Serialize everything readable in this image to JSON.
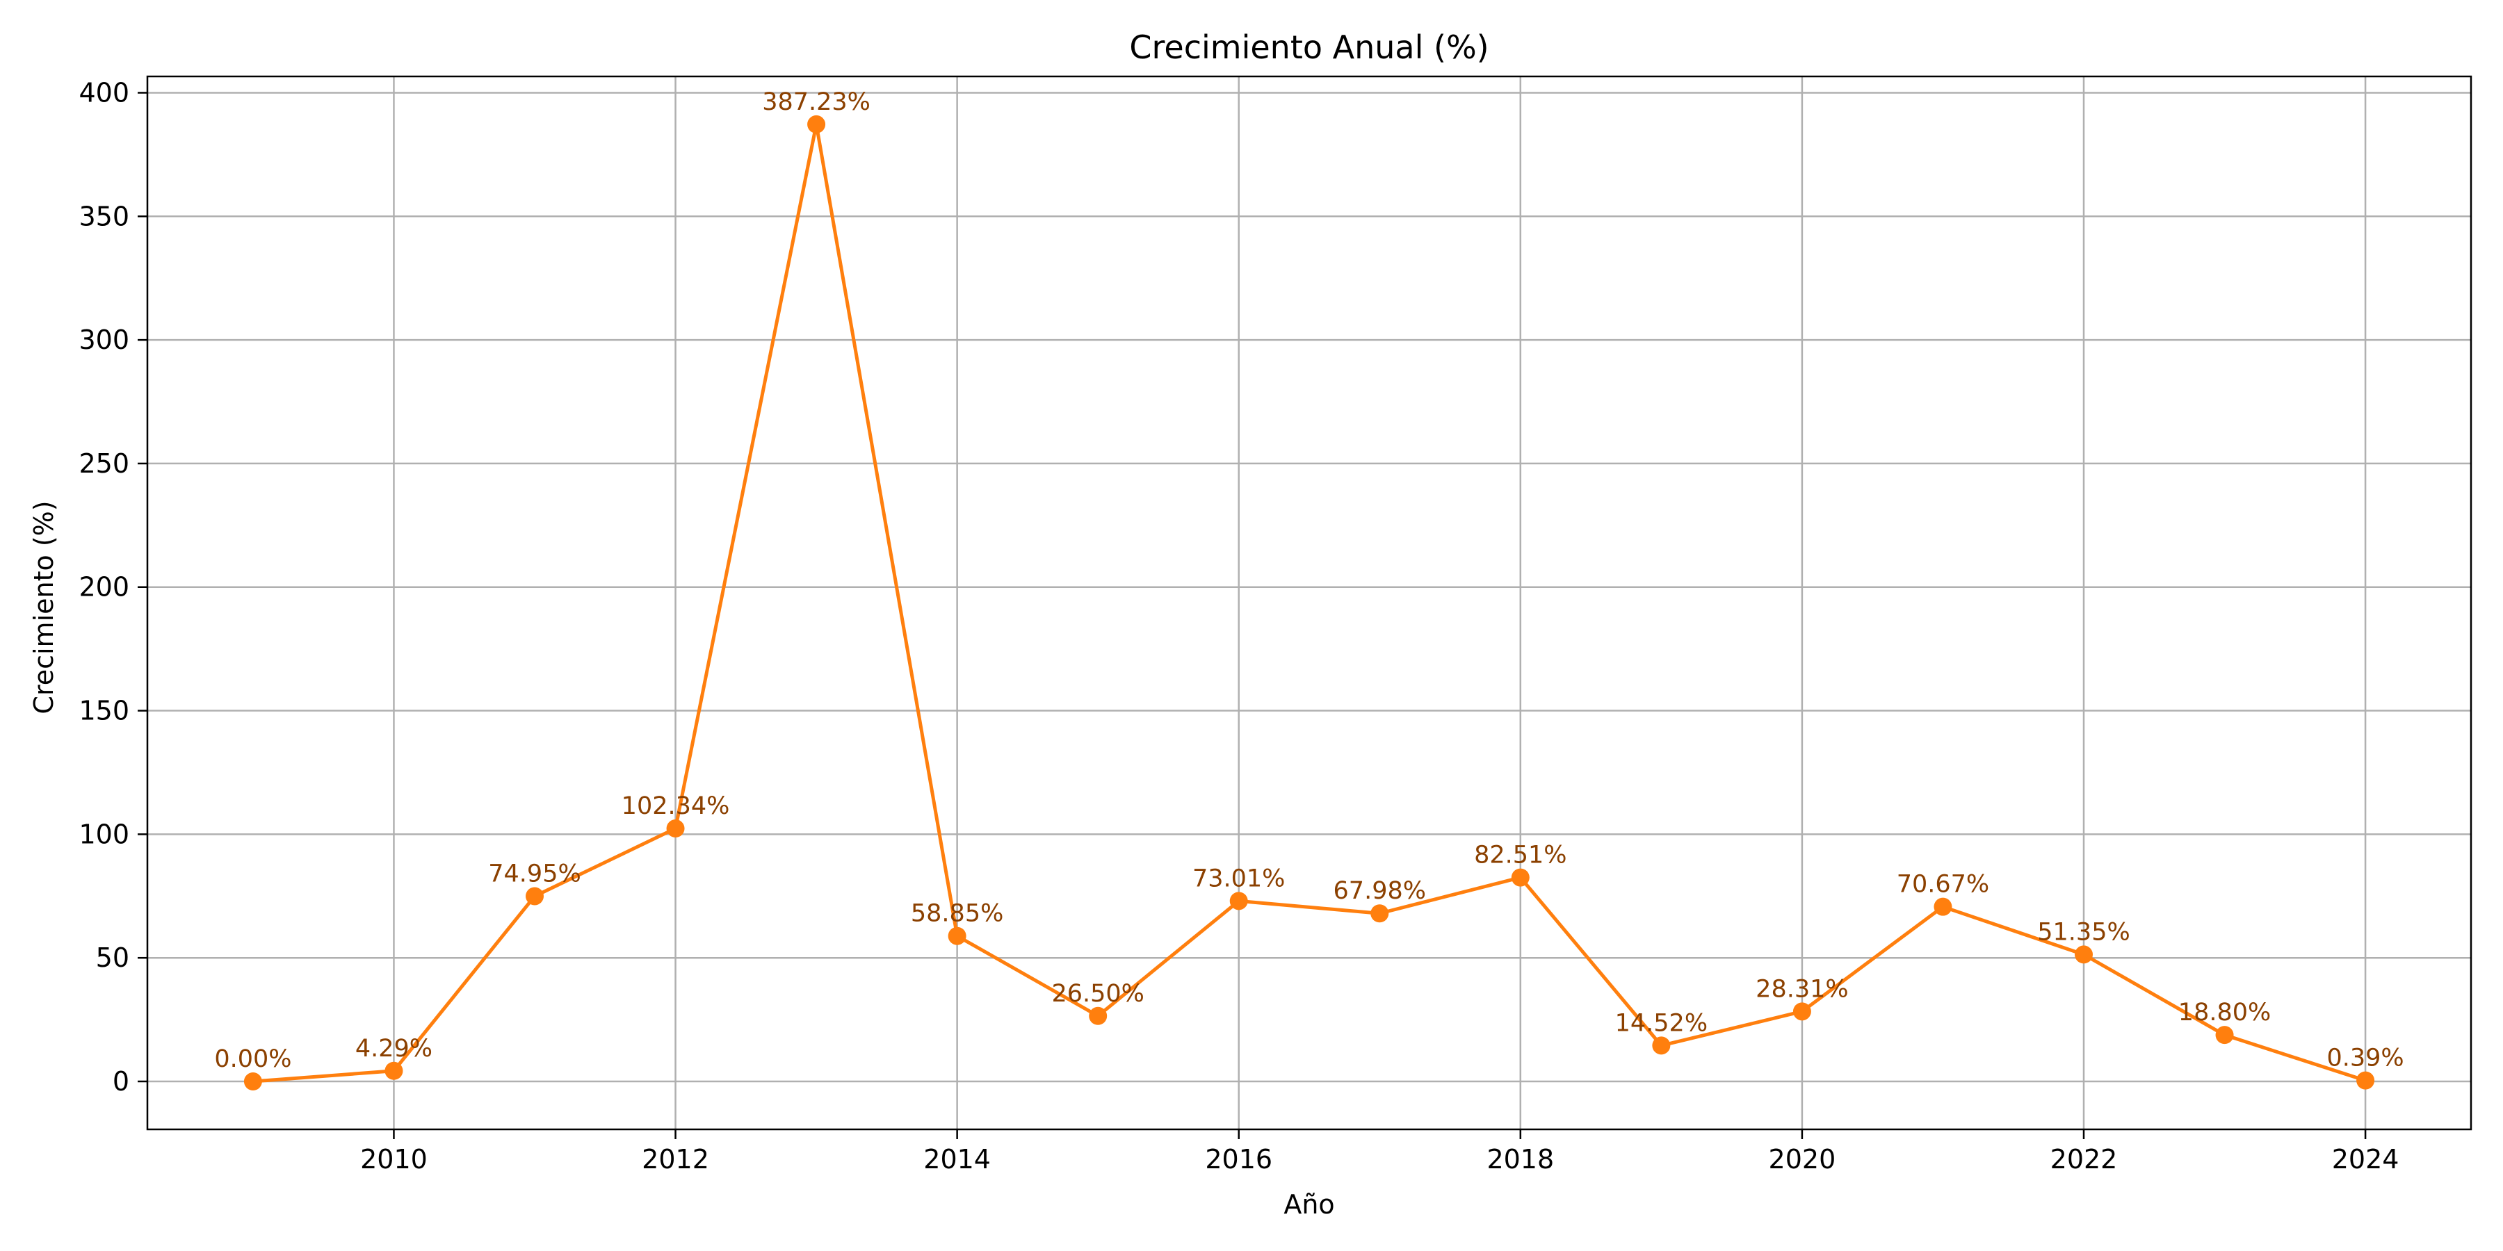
{
  "chart_data": {
    "type": "line",
    "title": "Crecimiento Anual (%)",
    "xlabel": "Año",
    "ylabel": "Crecimiento (%)",
    "x": [
      2009,
      2010,
      2011,
      2012,
      2013,
      2014,
      2015,
      2016,
      2017,
      2018,
      2019,
      2020,
      2021,
      2022,
      2023,
      2024
    ],
    "series": [
      {
        "values": [
          0.0,
          4.29,
          74.95,
          102.34,
          387.23,
          58.85,
          26.5,
          73.01,
          67.98,
          82.51,
          14.52,
          28.31,
          70.67,
          51.35,
          18.8,
          0.39
        ],
        "color": "#ff7f0e",
        "marker": "circle"
      }
    ],
    "data_labels": [
      "0.00%",
      "4.29%",
      "74.95%",
      "102.34%",
      "387.23%",
      "58.85%",
      "26.50%",
      "73.01%",
      "67.98%",
      "82.51%",
      "14.52%",
      "28.31%",
      "70.67%",
      "51.35%",
      "18.80%",
      "0.39%"
    ],
    "data_label_color": "#8b4000",
    "x_ticks": [
      2010,
      2012,
      2014,
      2016,
      2018,
      2020,
      2022,
      2024
    ],
    "y_ticks": [
      0,
      50,
      100,
      150,
      200,
      250,
      300,
      350,
      400
    ],
    "xlim": [
      2008.25,
      2024.75
    ],
    "ylim": [
      -19.4,
      406.6
    ],
    "grid": true,
    "grid_color": "#b0b0b0"
  }
}
